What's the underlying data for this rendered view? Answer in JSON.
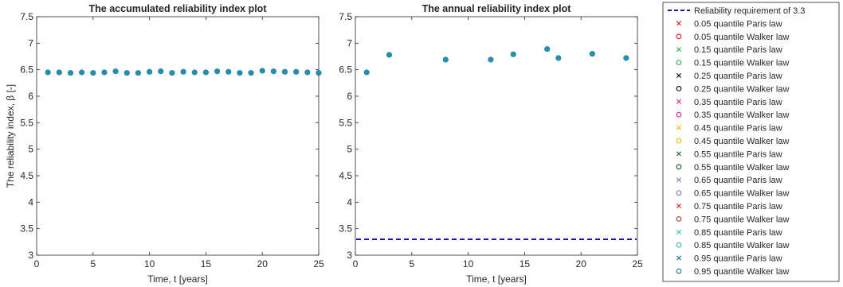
{
  "chart_data": [
    {
      "type": "scatter",
      "title": "The accumulated reliability index plot",
      "xlabel": "Time, t [years]",
      "ylabel": "The reliability index, β [-]",
      "xlim": [
        0,
        25
      ],
      "ylim": [
        3,
        7.5
      ],
      "xticks": [
        "0",
        "5",
        "10",
        "15",
        "20",
        "25"
      ],
      "yticks": [
        "3",
        "3.5",
        "4",
        "4.5",
        "5",
        "5.5",
        "6",
        "6.5",
        "7",
        "7.5"
      ],
      "grid": false,
      "marker_color": "#1f9bb3",
      "x": [
        1,
        2,
        3,
        4,
        5,
        6,
        7,
        8,
        9,
        10,
        11,
        12,
        13,
        14,
        15,
        16,
        17,
        18,
        19,
        20,
        21,
        22,
        23,
        24,
        25
      ],
      "y": [
        6.45,
        6.45,
        6.44,
        6.45,
        6.44,
        6.45,
        6.47,
        6.44,
        6.44,
        6.46,
        6.47,
        6.44,
        6.46,
        6.45,
        6.45,
        6.47,
        6.46,
        6.44,
        6.44,
        6.48,
        6.47,
        6.46,
        6.46,
        6.45,
        6.44
      ]
    },
    {
      "type": "scatter",
      "title": "The annual reliability index plot",
      "xlabel": "Time, t [years]",
      "ylabel": "",
      "xlim": [
        0,
        25
      ],
      "ylim": [
        3,
        7.5
      ],
      "xticks": [
        "0",
        "5",
        "10",
        "15",
        "20",
        "25"
      ],
      "yticks": [
        "3",
        "3.5",
        "4",
        "4.5",
        "5",
        "5.5",
        "6",
        "6.5",
        "7",
        "7.5"
      ],
      "grid": false,
      "marker_color": "#1f9bb3",
      "x": [
        1,
        3,
        8,
        12,
        14,
        17,
        18,
        21,
        24
      ],
      "y": [
        6.45,
        6.78,
        6.69,
        6.69,
        6.79,
        6.89,
        6.72,
        6.8,
        6.72
      ],
      "reference_line": {
        "y": 3.3,
        "color": "#1a1aa8",
        "style": "dashed"
      }
    }
  ],
  "legend": {
    "placement": "right",
    "entries": [
      {
        "label": "Reliability requirement of 3.3",
        "marker": "dash",
        "color": "#1a1aa8"
      },
      {
        "label": "0.05 quantile Paris law",
        "marker": "x",
        "color": "#e8242a"
      },
      {
        "label": "0.05 quantile Walker law",
        "marker": "o",
        "color": "#e8242a"
      },
      {
        "label": "0.15 quantile Paris law",
        "marker": "x",
        "color": "#3bb84a"
      },
      {
        "label": "0.15 quantile Walker law",
        "marker": "o",
        "color": "#3bb84a"
      },
      {
        "label": "0.25 quantile Paris law",
        "marker": "x",
        "color": "#111111"
      },
      {
        "label": "0.25 quantile Walker law",
        "marker": "o",
        "color": "#111111"
      },
      {
        "label": "0.35 quantile Paris law",
        "marker": "x",
        "color": "#e0338c"
      },
      {
        "label": "0.35 quantile Walker law",
        "marker": "o",
        "color": "#e0338c"
      },
      {
        "label": "0.45 quantile Paris law",
        "marker": "x",
        "color": "#f2c01e"
      },
      {
        "label": "0.45 quantile Walker law",
        "marker": "o",
        "color": "#f2c01e"
      },
      {
        "label": "0.55 quantile Paris law",
        "marker": "x",
        "color": "#1f6e2d"
      },
      {
        "label": "0.55 quantile Walker law",
        "marker": "o",
        "color": "#1f6e2d"
      },
      {
        "label": "0.65 quantile Paris law",
        "marker": "x",
        "color": "#8a7fd6"
      },
      {
        "label": "0.65 quantile Walker law",
        "marker": "o",
        "color": "#8a7fd6"
      },
      {
        "label": "0.75 quantile Paris law",
        "marker": "x",
        "color": "#c2342e"
      },
      {
        "label": "0.75 quantile Walker law",
        "marker": "o",
        "color": "#a3483f"
      },
      {
        "label": "0.85 quantile Paris law",
        "marker": "x",
        "color": "#3fc4c0"
      },
      {
        "label": "0.85 quantile Walker law",
        "marker": "o",
        "color": "#3fc4c0"
      },
      {
        "label": "0.95 quantile Paris law",
        "marker": "x",
        "color": "#1d7c9e"
      },
      {
        "label": "0.95 quantile Walker law",
        "marker": "o",
        "color": "#1d7c9e"
      }
    ]
  }
}
